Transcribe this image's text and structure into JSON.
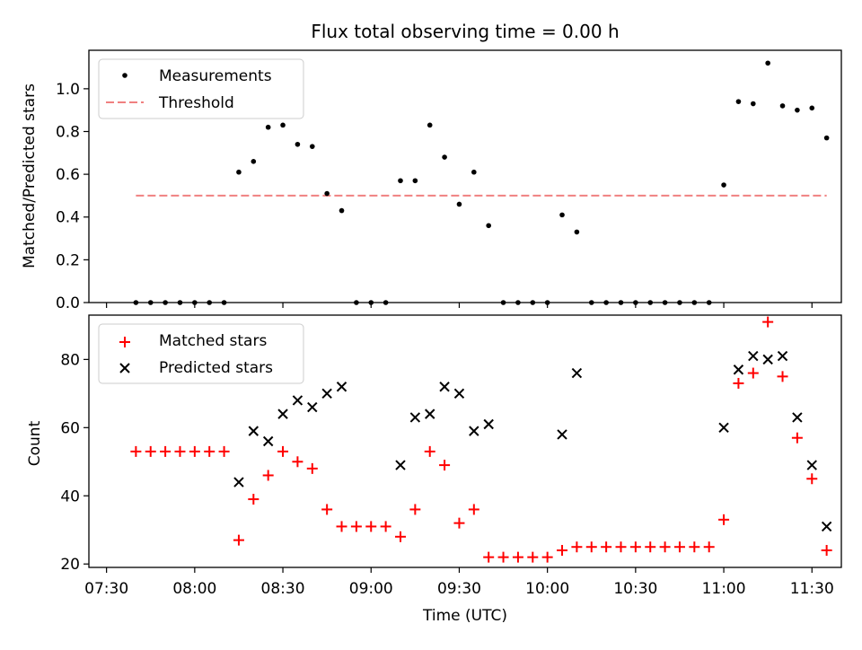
{
  "chart_data": [
    {
      "type": "scatter",
      "title": "Flux total observing time = 0.00 h",
      "ylabel": "Matched/Predicted stars",
      "xlabel": "",
      "ylim": [
        0,
        1.18
      ],
      "xlim": [
        "07:24",
        "11:40"
      ],
      "yticks": [
        "0.0",
        "0.2",
        "0.4",
        "0.6",
        "0.8",
        "1.0"
      ],
      "legend": {
        "placement": "top-left"
      },
      "series": [
        {
          "name": "Measurements",
          "marker": "dot",
          "color": "#000000",
          "points": [
            [
              "07:40",
              0.0
            ],
            [
              "07:45",
              0.0
            ],
            [
              "07:50",
              0.0
            ],
            [
              "07:55",
              0.0
            ],
            [
              "08:00",
              0.0
            ],
            [
              "08:05",
              0.0
            ],
            [
              "08:10",
              0.0
            ],
            [
              "08:15",
              0.61
            ],
            [
              "08:20",
              0.66
            ],
            [
              "08:25",
              0.82
            ],
            [
              "08:30",
              0.83
            ],
            [
              "08:35",
              0.74
            ],
            [
              "08:40",
              0.73
            ],
            [
              "08:45",
              0.51
            ],
            [
              "08:50",
              0.43
            ],
            [
              "08:55",
              0.0
            ],
            [
              "09:00",
              0.0
            ],
            [
              "09:05",
              0.0
            ],
            [
              "09:10",
              0.57
            ],
            [
              "09:15",
              0.57
            ],
            [
              "09:20",
              0.83
            ],
            [
              "09:25",
              0.68
            ],
            [
              "09:30",
              0.46
            ],
            [
              "09:35",
              0.61
            ],
            [
              "09:40",
              0.36
            ],
            [
              "09:45",
              0.0
            ],
            [
              "09:50",
              0.0
            ],
            [
              "09:55",
              0.0
            ],
            [
              "10:00",
              0.0
            ],
            [
              "10:05",
              0.41
            ],
            [
              "10:10",
              0.33
            ],
            [
              "10:15",
              0.0
            ],
            [
              "10:20",
              0.0
            ],
            [
              "10:25",
              0.0
            ],
            [
              "10:30",
              0.0
            ],
            [
              "10:35",
              0.0
            ],
            [
              "10:40",
              0.0
            ],
            [
              "10:45",
              0.0
            ],
            [
              "10:50",
              0.0
            ],
            [
              "10:55",
              0.0
            ],
            [
              "11:00",
              0.55
            ],
            [
              "11:05",
              0.94
            ],
            [
              "11:10",
              0.93
            ],
            [
              "11:15",
              1.12
            ],
            [
              "11:20",
              0.92
            ],
            [
              "11:25",
              0.9
            ],
            [
              "11:30",
              0.91
            ],
            [
              "11:35",
              0.77
            ]
          ]
        },
        {
          "name": "Threshold",
          "marker": "dashed-line",
          "color": "#f08080",
          "points": [
            [
              "07:40",
              0.5
            ],
            [
              "11:35",
              0.5
            ]
          ]
        }
      ]
    },
    {
      "type": "scatter",
      "title": "",
      "ylabel": "Count",
      "xlabel": "Time (UTC)",
      "ylim": [
        19,
        93
      ],
      "xlim": [
        "07:24",
        "11:40"
      ],
      "yticks": [
        "20",
        "40",
        "60",
        "80"
      ],
      "xticks": [
        "07:30",
        "08:00",
        "08:30",
        "09:00",
        "09:30",
        "10:00",
        "10:30",
        "11:00",
        "11:30"
      ],
      "legend": {
        "placement": "top-left"
      },
      "series": [
        {
          "name": "Matched stars",
          "marker": "plus",
          "color": "#ff0000",
          "points": [
            [
              "07:40",
              53
            ],
            [
              "07:45",
              53
            ],
            [
              "07:50",
              53
            ],
            [
              "07:55",
              53
            ],
            [
              "08:00",
              53
            ],
            [
              "08:05",
              53
            ],
            [
              "08:10",
              53
            ],
            [
              "08:15",
              27
            ],
            [
              "08:20",
              39
            ],
            [
              "08:25",
              46
            ],
            [
              "08:30",
              53
            ],
            [
              "08:35",
              50
            ],
            [
              "08:40",
              48
            ],
            [
              "08:45",
              36
            ],
            [
              "08:50",
              31
            ],
            [
              "08:55",
              31
            ],
            [
              "09:00",
              31
            ],
            [
              "09:05",
              31
            ],
            [
              "09:10",
              28
            ],
            [
              "09:15",
              36
            ],
            [
              "09:20",
              53
            ],
            [
              "09:25",
              49
            ],
            [
              "09:30",
              32
            ],
            [
              "09:35",
              36
            ],
            [
              "09:40",
              22
            ],
            [
              "09:45",
              22
            ],
            [
              "09:50",
              22
            ],
            [
              "09:55",
              22
            ],
            [
              "10:00",
              22
            ],
            [
              "10:05",
              24
            ],
            [
              "10:10",
              25
            ],
            [
              "10:15",
              25
            ],
            [
              "10:20",
              25
            ],
            [
              "10:25",
              25
            ],
            [
              "10:30",
              25
            ],
            [
              "10:35",
              25
            ],
            [
              "10:40",
              25
            ],
            [
              "10:45",
              25
            ],
            [
              "10:50",
              25
            ],
            [
              "10:55",
              25
            ],
            [
              "11:00",
              33
            ],
            [
              "11:05",
              73
            ],
            [
              "11:10",
              76
            ],
            [
              "11:15",
              91
            ],
            [
              "11:20",
              75
            ],
            [
              "11:25",
              57
            ],
            [
              "11:30",
              45
            ],
            [
              "11:35",
              24
            ]
          ]
        },
        {
          "name": "Predicted stars",
          "marker": "x",
          "color": "#000000",
          "points": [
            [
              "08:15",
              44
            ],
            [
              "08:20",
              59
            ],
            [
              "08:25",
              56
            ],
            [
              "08:30",
              64
            ],
            [
              "08:35",
              68
            ],
            [
              "08:40",
              66
            ],
            [
              "08:45",
              70
            ],
            [
              "08:50",
              72
            ],
            [
              "09:10",
              49
            ],
            [
              "09:15",
              63
            ],
            [
              "09:20",
              64
            ],
            [
              "09:25",
              72
            ],
            [
              "09:30",
              70
            ],
            [
              "09:35",
              59
            ],
            [
              "09:40",
              61
            ],
            [
              "10:05",
              58
            ],
            [
              "10:10",
              76
            ],
            [
              "11:00",
              60
            ],
            [
              "11:05",
              77
            ],
            [
              "11:10",
              81
            ],
            [
              "11:15",
              80
            ],
            [
              "11:20",
              81
            ],
            [
              "11:25",
              63
            ],
            [
              "11:30",
              49
            ],
            [
              "11:35",
              31
            ]
          ]
        }
      ]
    }
  ]
}
